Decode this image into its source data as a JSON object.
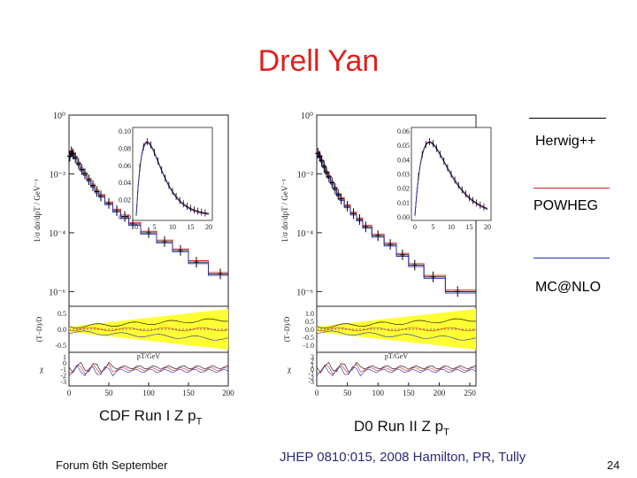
{
  "title": "Drell Yan",
  "legend": [
    {
      "label": "Herwig++",
      "color": "#000000"
    },
    {
      "label": "POWHEG",
      "color": "#d62020"
    },
    {
      "label": "MC@NLO",
      "color": "#1f2fb5"
    }
  ],
  "captions": {
    "left": "CDF Run I Z p",
    "left_sub": "T",
    "right": "D0 Run II Z p",
    "right_sub": "T"
  },
  "footer": {
    "left": "Forum 6th September",
    "reference": "JHEP 0810:015, 2008 Hamilton, PR, Tully",
    "page": "24"
  },
  "colors": {
    "title": "#e0201b",
    "band": "#ffff33"
  },
  "chart_data": [
    {
      "type": "line",
      "name": "CDF Run I Z pT",
      "xlabel": "pT/GeV",
      "ylabel_main": "1/σ dσ/dpT / GeV⁻¹",
      "ylabel_ratio": "(T−D)/D",
      "ylabel_chi": "χ",
      "xlim": [
        0,
        200
      ],
      "x_ticks": [
        "0",
        "50",
        "100",
        "150",
        "200"
      ],
      "y_ticks_main": [
        "10⁰",
        "10⁻²",
        "10⁻⁴",
        "10⁻⁶"
      ],
      "y_ticks_ratio": [
        "0.5",
        "0.0",
        "-0.5"
      ],
      "y_ticks_chi": [
        "1",
        "0",
        "-1",
        "-2",
        "-3"
      ],
      "inset": {
        "xlim": [
          0,
          20
        ],
        "ylim": [
          0,
          0.1
        ],
        "x_ticks": [
          "0",
          "5",
          "10",
          "15",
          "20"
        ],
        "y_ticks": [
          "0.10",
          "0.08",
          "0.06",
          "0.04",
          "0.02",
          "0.00"
        ]
      },
      "main_x": [
        1,
        3,
        5,
        8,
        12,
        16,
        20,
        25,
        30,
        35,
        40,
        50,
        60,
        70,
        80,
        100,
        120,
        140,
        160,
        190
      ],
      "main_log10_y": [
        -1.4,
        -1.25,
        -1.32,
        -1.45,
        -1.65,
        -1.85,
        -2.0,
        -2.2,
        -2.4,
        -2.6,
        -2.75,
        -3.0,
        -3.25,
        -3.45,
        -3.7,
        -4.0,
        -4.3,
        -4.6,
        -5.0,
        -5.4
      ]
    },
    {
      "type": "line",
      "name": "D0 Run II Z pT",
      "xlabel": "pT/GeV",
      "ylabel_main": "1/σ dσ/dpT / GeV⁻¹",
      "ylabel_ratio": "(T−D)/D",
      "ylabel_chi": "χ",
      "xlim": [
        0,
        260
      ],
      "x_ticks": [
        "0",
        "50",
        "100",
        "150",
        "200",
        "250"
      ],
      "y_ticks_main": [
        "10⁰",
        "10⁻²",
        "10⁻⁴",
        "10⁻⁶"
      ],
      "y_ticks_ratio": [
        "1.0",
        "0.5",
        "0.0",
        "-0.5",
        "-1.0"
      ],
      "y_ticks_chi": [
        "3",
        "2",
        "1",
        "0",
        "-1",
        "-2",
        "-3"
      ],
      "inset": {
        "xlim": [
          0,
          20
        ],
        "ylim": [
          0,
          0.06
        ],
        "x_ticks": [
          "0",
          "5",
          "10",
          "15",
          "20"
        ],
        "y_ticks": [
          "0.06",
          "0.05",
          "0.04",
          "0.03",
          "0.02",
          "0.01",
          "0.00"
        ]
      },
      "main_x": [
        2,
        5,
        8,
        12,
        16,
        20,
        25,
        30,
        35,
        40,
        50,
        60,
        70,
        80,
        100,
        120,
        140,
        160,
        190,
        230
      ],
      "main_log10_y": [
        -1.3,
        -1.4,
        -1.55,
        -1.75,
        -1.95,
        -2.1,
        -2.3,
        -2.5,
        -2.7,
        -2.85,
        -3.1,
        -3.35,
        -3.55,
        -3.8,
        -4.1,
        -4.4,
        -4.75,
        -5.1,
        -5.5,
        -6.0
      ]
    }
  ]
}
